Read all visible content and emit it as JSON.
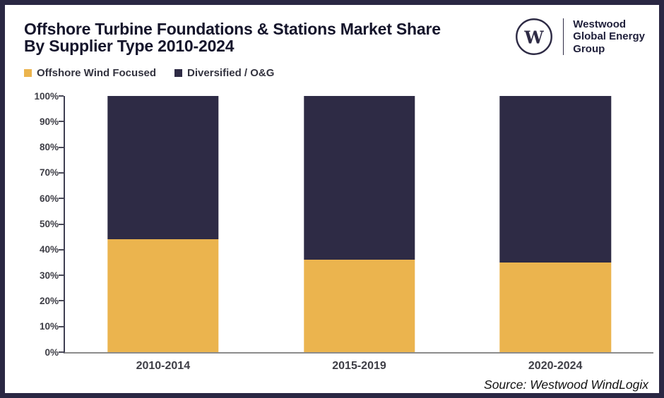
{
  "header": {
    "title_line1": "Offshore Turbine Foundations & Stations Market Share",
    "title_line2": "By Supplier Type 2010-2024",
    "logo": {
      "monogram": "W",
      "name_lines": [
        "Westwood",
        "Global Energy",
        "Group"
      ]
    }
  },
  "legend": {
    "items": [
      {
        "label": "Offshore Wind Focused",
        "color": "#EBB44E"
      },
      {
        "label": "Diversified / O&G",
        "color": "#2E2B45"
      }
    ]
  },
  "footer": {
    "source": "Source: Westwood WindLogix"
  },
  "colors": {
    "brand_navy": "#2E2B45",
    "accent_yellow": "#EBB44E",
    "frame_border": "#2A2743"
  },
  "chart_data": {
    "type": "bar",
    "stacked": true,
    "title": "Offshore Turbine Foundations & Stations Market Share By Supplier Type 2010-2024",
    "categories": [
      "2010-2014",
      "2015-2019",
      "2020-2024"
    ],
    "series": [
      {
        "name": "Offshore Wind Focused",
        "color": "#EBB44E",
        "values": [
          44,
          36,
          35
        ]
      },
      {
        "name": "Diversified / O&G",
        "color": "#2E2B45",
        "values": [
          56,
          64,
          65
        ]
      }
    ],
    "xlabel": "",
    "ylabel": "",
    "ylim": [
      0,
      100
    ],
    "yticks": [
      "0%",
      "10%",
      "20%",
      "30%",
      "40%",
      "50%",
      "60%",
      "70%",
      "80%",
      "90%",
      "100%"
    ],
    "grid": false,
    "legend_position": "top-left"
  }
}
